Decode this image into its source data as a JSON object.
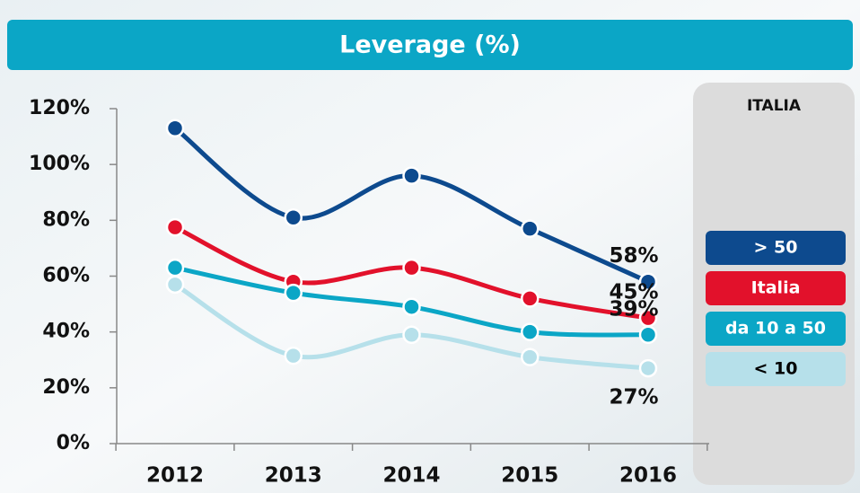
{
  "chart_data": {
    "type": "line",
    "title": "Leverage (%)",
    "categories": [
      "2012",
      "2013",
      "2014",
      "2015",
      "2016"
    ],
    "ylim": [
      0,
      120
    ],
    "yticks": [
      {
        "value": 0,
        "label": "0%"
      },
      {
        "value": 20,
        "label": "20%"
      },
      {
        "value": 40,
        "label": "40%"
      },
      {
        "value": 60,
        "label": "60%"
      },
      {
        "value": 80,
        "label": "80%"
      },
      {
        "value": 100,
        "label": "100%"
      },
      {
        "value": 120,
        "label": "120%"
      }
    ],
    "legend_title": "ITALIA",
    "series": [
      {
        "name": "> 50",
        "color": "#0d4a8e",
        "text_color": "#ffffff",
        "values": [
          113,
          81,
          96,
          77,
          58
        ],
        "value_labels": [
          null,
          null,
          null,
          null,
          "58%"
        ]
      },
      {
        "name": "Italia",
        "color": "#e2112b",
        "text_color": "#ffffff",
        "values": [
          77.5,
          58,
          63,
          52,
          45
        ],
        "value_labels": [
          null,
          null,
          null,
          null,
          "45%"
        ]
      },
      {
        "name": "da 10 a 50",
        "color": "#0ba6c6",
        "text_color": "#ffffff",
        "values": [
          63,
          54,
          49,
          40,
          39
        ],
        "value_labels": [
          null,
          null,
          null,
          null,
          "39%"
        ]
      },
      {
        "name": "< 10",
        "color": "#b6e0ea",
        "text_color": "#000000",
        "values": [
          57,
          31.5,
          39,
          31,
          27
        ],
        "value_labels": [
          null,
          null,
          null,
          null,
          "27%"
        ]
      }
    ]
  }
}
